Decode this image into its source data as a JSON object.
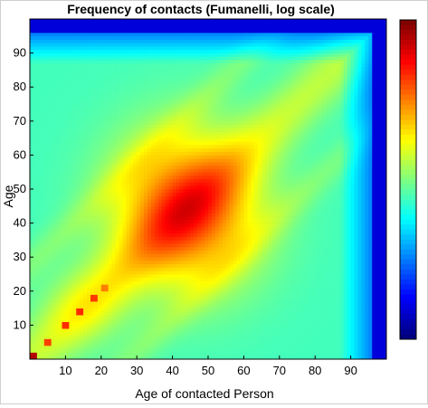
{
  "chart_data": {
    "type": "heatmap",
    "title": "Frequency of contacts (Fumanelli, log scale)",
    "xlabel": "Age of contacted Person",
    "ylabel": "Age",
    "xlim": [
      0,
      100
    ],
    "ylim": [
      0,
      100
    ],
    "x_ticks": [
      10,
      20,
      30,
      40,
      50,
      60,
      70,
      80,
      90
    ],
    "y_ticks": [
      10,
      20,
      30,
      40,
      50,
      60,
      70,
      80,
      90
    ],
    "colormap": "jet",
    "colorbar": true,
    "colorbar_ticks_visible": false,
    "grid": false,
    "description_hidden": false,
    "intensity_model": {
      "grid_size": 100,
      "value_range": [
        0,
        1
      ],
      "background_base": 0.44,
      "central_peak": {
        "age": 44,
        "contact_age": 44,
        "value": 0.82
      },
      "diagonal_peaks": [
        {
          "age": 5,
          "contact_age": 5,
          "value": 0.97
        },
        {
          "age": 10,
          "contact_age": 10,
          "value": 0.95
        },
        {
          "age": 14,
          "contact_age": 14,
          "value": 0.93
        },
        {
          "age": 18,
          "contact_age": 18,
          "value": 0.92
        },
        {
          "age": 21,
          "contact_age": 21,
          "value": 0.86
        }
      ],
      "secondary_ridges": [
        {
          "from_age": 30,
          "to_age": 98,
          "offset": 28,
          "value": 0.62
        }
      ],
      "edge_dropoff_start_age": 87,
      "edge_min_value": 0.08
    }
  }
}
